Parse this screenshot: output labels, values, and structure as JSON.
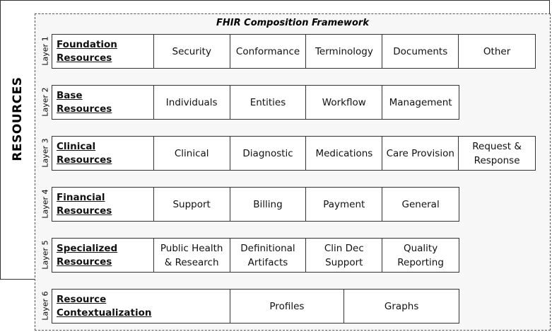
{
  "diagram": {
    "title": "FHIR Composition Framework",
    "side_label": "RESOURCES",
    "layers": [
      {
        "layer": "Layer 1",
        "name": "Foundation\nResources",
        "cells": [
          "Security",
          "Conformance",
          "Terminology",
          "Documents",
          "Other"
        ]
      },
      {
        "layer": "Layer 2",
        "name": "Base\nResources",
        "cells": [
          "Individuals",
          "Entities",
          "Workflow",
          "Management"
        ]
      },
      {
        "layer": "Layer 3",
        "name": "Clinical\nResources",
        "cells": [
          "Clinical",
          "Diagnostic",
          "Medications",
          "Care Provision",
          "Request &\nResponse"
        ]
      },
      {
        "layer": "Layer 4",
        "name": "Financial\nResources",
        "cells": [
          "Support",
          "Billing",
          "Payment",
          "General"
        ]
      },
      {
        "layer": "Layer 5",
        "name": "Specialized\nResources",
        "cells": [
          "Public Health\n& Research",
          "Definitional\nArtifacts",
          "Clin Dec\nSupport",
          "Quality\nReporting"
        ]
      },
      {
        "layer": "Layer 6",
        "name": "Resource\nContextualization",
        "cells": [
          "Profiles",
          "Graphs"
        ]
      }
    ]
  }
}
